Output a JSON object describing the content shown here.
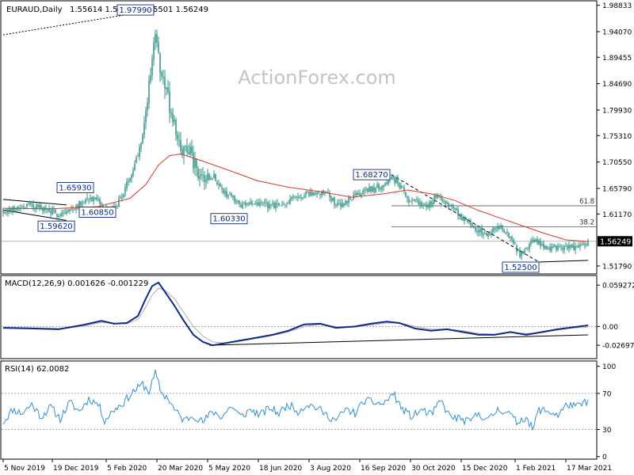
{
  "watermark": "ActionForex.com",
  "colors": {
    "candle": "#1e8a7a",
    "ma": "#d93a2b",
    "macd": "#0e2a8a",
    "signal": "#b0b0b0",
    "rsi": "#2e8fd6",
    "annotation": "#0a2a8a",
    "axis": "#000000",
    "grid_dash": "#888888"
  },
  "chart_data": [
    {
      "type": "candlestick",
      "title": "EURAUD,Daily",
      "ohlc_header": "1.55614 1.56265 1.55501 1.56249",
      "ylim": [
        1.505,
        1.995
      ],
      "y_ticks": [
        "1.98833",
        "1.94070",
        "1.89455",
        "1.84690",
        "1.79930",
        "1.75310",
        "1.70550",
        "1.65790",
        "1.61170",
        "1.56249",
        "1.51790"
      ],
      "y_tick_values": [
        1.98833,
        1.9407,
        1.89455,
        1.8469,
        1.7993,
        1.7531,
        1.7055,
        1.6579,
        1.6117,
        1.56249,
        1.5179
      ],
      "current_price_label": "1.56249",
      "current_price": 1.56249,
      "x_ticks": [
        "5 Nov 2019",
        "19 Dec 2019",
        "5 Feb 2020",
        "20 Mar 2020",
        "5 May 2020",
        "18 Jun 2020",
        "3 Aug 2020",
        "16 Sep 2020",
        "30 Oct 2020",
        "15 Dec 2020",
        "1 Feb 2021",
        "17 Mar 2021"
      ],
      "x_tick_index": [
        0,
        31,
        65,
        97,
        129,
        161,
        193,
        225,
        257,
        289,
        323,
        355
      ],
      "bars_count": 370,
      "close_path": [
        [
          0,
          1.617
        ],
        [
          8,
          1.622
        ],
        [
          15,
          1.628
        ],
        [
          22,
          1.625
        ],
        [
          28,
          1.618
        ],
        [
          33,
          1.612
        ],
        [
          40,
          1.615
        ],
        [
          47,
          1.628
        ],
        [
          54,
          1.642
        ],
        [
          60,
          1.632
        ],
        [
          65,
          1.616
        ],
        [
          70,
          1.622
        ],
        [
          76,
          1.65
        ],
        [
          80,
          1.68
        ],
        [
          85,
          1.72
        ],
        [
          89,
          1.77
        ],
        [
          93,
          1.86
        ],
        [
          96,
          1.95
        ],
        [
          98,
          1.9
        ],
        [
          100,
          1.86
        ],
        [
          104,
          1.82
        ],
        [
          108,
          1.77
        ],
        [
          112,
          1.735
        ],
        [
          116,
          1.72
        ],
        [
          120,
          1.71
        ],
        [
          124,
          1.685
        ],
        [
          128,
          1.675
        ],
        [
          133,
          1.68
        ],
        [
          138,
          1.655
        ],
        [
          144,
          1.642
        ],
        [
          150,
          1.628
        ],
        [
          156,
          1.632
        ],
        [
          162,
          1.63
        ],
        [
          168,
          1.625
        ],
        [
          174,
          1.63
        ],
        [
          180,
          1.635
        ],
        [
          186,
          1.642
        ],
        [
          192,
          1.648
        ],
        [
          198,
          1.65
        ],
        [
          204,
          1.648
        ],
        [
          210,
          1.628
        ],
        [
          216,
          1.632
        ],
        [
          222,
          1.645
        ],
        [
          228,
          1.655
        ],
        [
          233,
          1.657
        ],
        [
          238,
          1.66
        ],
        [
          242,
          1.672
        ],
        [
          246,
          1.675
        ],
        [
          250,
          1.665
        ],
        [
          256,
          1.638
        ],
        [
          262,
          1.63
        ],
        [
          268,
          1.625
        ],
        [
          274,
          1.645
        ],
        [
          280,
          1.63
        ],
        [
          286,
          1.617
        ],
        [
          292,
          1.598
        ],
        [
          298,
          1.585
        ],
        [
          304,
          1.575
        ],
        [
          310,
          1.585
        ],
        [
          314,
          1.59
        ],
        [
          318,
          1.575
        ],
        [
          322,
          1.558
        ],
        [
          326,
          1.538
        ],
        [
          330,
          1.55
        ],
        [
          334,
          1.565
        ],
        [
          338,
          1.56
        ],
        [
          342,
          1.55
        ],
        [
          348,
          1.552
        ],
        [
          354,
          1.55
        ],
        [
          360,
          1.553
        ],
        [
          365,
          1.556
        ],
        [
          369,
          1.562
        ]
      ],
      "series": [
        {
          "name": "",
          "kind": "moving-average",
          "points": [
            [
              0,
              1.622
            ],
            [
              30,
              1.621
            ],
            [
              60,
              1.625
            ],
            [
              80,
              1.64
            ],
            [
              90,
              1.665
            ],
            [
              98,
              1.7
            ],
            [
              105,
              1.717
            ],
            [
              112,
              1.72
            ],
            [
              125,
              1.708
            ],
            [
              140,
              1.693
            ],
            [
              160,
              1.672
            ],
            [
              180,
              1.66
            ],
            [
              200,
              1.652
            ],
            [
              220,
              1.642
            ],
            [
              240,
              1.648
            ],
            [
              255,
              1.655
            ],
            [
              270,
              1.648
            ],
            [
              285,
              1.636
            ],
            [
              300,
              1.618
            ],
            [
              320,
              1.598
            ],
            [
              340,
              1.578
            ],
            [
              355,
              1.565
            ],
            [
              369,
              1.562
            ]
          ]
        }
      ],
      "annotations": [
        {
          "label": "1.97990",
          "bar": 96,
          "price": 1.9799,
          "anchor": "left"
        },
        {
          "label": "1.65930",
          "bar": 58,
          "price": 1.6593,
          "anchor": "left"
        },
        {
          "label": "1.59620",
          "bar": 40,
          "price": 1.5962,
          "anchor": "left"
        },
        {
          "label": "1.60850",
          "bar": 47,
          "price": 1.6085,
          "anchor": "right"
        },
        {
          "label": "1.60330",
          "bar": 155,
          "price": 1.6033,
          "anchor": "left"
        },
        {
          "label": "1.68270",
          "bar": 245,
          "price": 1.6827,
          "anchor": "left"
        },
        {
          "label": "1.52500",
          "bar": 338,
          "price": 1.525,
          "anchor": "left"
        }
      ],
      "fib_levels": [
        {
          "label": "61.8",
          "price": 1.6265,
          "from_bar": 245,
          "to_bar": 369
        },
        {
          "label": "38.2",
          "price": 1.5887,
          "from_bar": 245,
          "to_bar": 369
        }
      ],
      "trendlines": [
        {
          "from": [
            0,
            1.935
          ],
          "to": [
            96,
            1.9799
          ],
          "style": "dotted"
        },
        {
          "from": [
            0,
            1.638
          ],
          "to": [
            40,
            1.628
          ],
          "style": "solid"
        },
        {
          "from": [
            0,
            1.619
          ],
          "to": [
            40,
            1.6
          ],
          "style": "solid"
        },
        {
          "from": [
            245,
            1.6827
          ],
          "to": [
            338,
            1.525
          ],
          "style": "dashed"
        },
        {
          "from": [
            338,
            1.525
          ],
          "to": [
            369,
            1.528
          ],
          "style": "solid"
        }
      ]
    },
    {
      "type": "line",
      "title": "MACD(12,26,9) 0.001626 -0.001229",
      "ylim": [
        -0.045,
        0.072
      ],
      "y_ticks": [
        "0.059272",
        "0.00",
        "-0.026978"
      ],
      "y_tick_values": [
        0.059272,
        0.0,
        -0.026978
      ],
      "series": [
        {
          "name": "",
          "points": [
            [
              0,
              -0.002
            ],
            [
              20,
              -0.003
            ],
            [
              35,
              -0.004
            ],
            [
              50,
              0.002
            ],
            [
              62,
              0.008
            ],
            [
              70,
              0.004
            ],
            [
              78,
              0.005
            ],
            [
              85,
              0.015
            ],
            [
              90,
              0.04
            ],
            [
              94,
              0.058
            ],
            [
              98,
              0.063
            ],
            [
              102,
              0.05
            ],
            [
              108,
              0.03
            ],
            [
              114,
              0.008
            ],
            [
              120,
              -0.012
            ],
            [
              126,
              -0.022
            ],
            [
              132,
              -0.027
            ],
            [
              140,
              -0.024
            ],
            [
              150,
              -0.02
            ],
            [
              160,
              -0.016
            ],
            [
              170,
              -0.012
            ],
            [
              180,
              -0.006
            ],
            [
              190,
              0.003
            ],
            [
              200,
              0.004
            ],
            [
              210,
              -0.002
            ],
            [
              222,
              0.0
            ],
            [
              232,
              0.004
            ],
            [
              242,
              0.007
            ],
            [
              250,
              0.005
            ],
            [
              260,
              -0.003
            ],
            [
              270,
              -0.006
            ],
            [
              280,
              -0.004
            ],
            [
              290,
              -0.008
            ],
            [
              300,
              -0.012
            ],
            [
              310,
              -0.012
            ],
            [
              320,
              -0.008
            ],
            [
              330,
              -0.012
            ],
            [
              340,
              -0.008
            ],
            [
              350,
              -0.004
            ],
            [
              360,
              -0.001
            ],
            [
              369,
              0.0016
            ]
          ]
        },
        {
          "name": "",
          "points": [
            [
              0,
              -0.001
            ],
            [
              20,
              -0.002
            ],
            [
              35,
              -0.003
            ],
            [
              50,
              0.0
            ],
            [
              62,
              0.006
            ],
            [
              70,
              0.004
            ],
            [
              78,
              0.004
            ],
            [
              85,
              0.01
            ],
            [
              90,
              0.028
            ],
            [
              94,
              0.045
            ],
            [
              98,
              0.055
            ],
            [
              102,
              0.052
            ],
            [
              108,
              0.04
            ],
            [
              114,
              0.02
            ],
            [
              120,
              0.0
            ],
            [
              126,
              -0.014
            ],
            [
              132,
              -0.022
            ],
            [
              140,
              -0.024
            ],
            [
              150,
              -0.021
            ],
            [
              160,
              -0.017
            ],
            [
              170,
              -0.013
            ],
            [
              180,
              -0.008
            ],
            [
              190,
              0.0
            ],
            [
              200,
              0.003
            ],
            [
              210,
              0.0
            ],
            [
              222,
              -0.001
            ],
            [
              232,
              0.002
            ],
            [
              242,
              0.005
            ],
            [
              250,
              0.005
            ],
            [
              260,
              0.0
            ],
            [
              270,
              -0.004
            ],
            [
              280,
              -0.004
            ],
            [
              290,
              -0.006
            ],
            [
              300,
              -0.01
            ],
            [
              310,
              -0.011
            ],
            [
              320,
              -0.009
            ],
            [
              330,
              -0.01
            ],
            [
              340,
              -0.009
            ],
            [
              350,
              -0.005
            ],
            [
              360,
              -0.002
            ],
            [
              369,
              -0.0012
            ]
          ]
        }
      ],
      "trendline": {
        "from": [
          130,
          -0.027
        ],
        "to": [
          369,
          -0.012
        ]
      }
    },
    {
      "type": "line",
      "title": "RSI(14) 62.0082",
      "ylim": [
        -2,
        105
      ],
      "y_ticks": [
        "100",
        "70",
        "30",
        "0"
      ],
      "y_tick_values": [
        100,
        70,
        30,
        0
      ],
      "levels": [
        70,
        30
      ],
      "series": [
        {
          "name": "",
          "points": [
            [
              0,
              38
            ],
            [
              6,
              52
            ],
            [
              12,
              48
            ],
            [
              18,
              58
            ],
            [
              24,
              44
            ],
            [
              30,
              55
            ],
            [
              36,
              42
            ],
            [
              42,
              60
            ],
            [
              48,
              50
            ],
            [
              54,
              64
            ],
            [
              60,
              58
            ],
            [
              64,
              40
            ],
            [
              70,
              52
            ],
            [
              76,
              60
            ],
            [
              82,
              72
            ],
            [
              88,
              80
            ],
            [
              92,
              72
            ],
            [
              96,
              92
            ],
            [
              100,
              70
            ],
            [
              104,
              65
            ],
            [
              108,
              52
            ],
            [
              114,
              40
            ],
            [
              120,
              46
            ],
            [
              126,
              38
            ],
            [
              132,
              50
            ],
            [
              138,
              44
            ],
            [
              144,
              56
            ],
            [
              150,
              44
            ],
            [
              156,
              52
            ],
            [
              162,
              46
            ],
            [
              168,
              54
            ],
            [
              174,
              48
            ],
            [
              180,
              58
            ],
            [
              186,
              50
            ],
            [
              192,
              58
            ],
            [
              198,
              54
            ],
            [
              204,
              46
            ],
            [
              210,
              40
            ],
            [
              216,
              52
            ],
            [
              222,
              48
            ],
            [
              228,
              62
            ],
            [
              234,
              60
            ],
            [
              240,
              58
            ],
            [
              246,
              70
            ],
            [
              252,
              52
            ],
            [
              258,
              44
            ],
            [
              264,
              52
            ],
            [
              270,
              46
            ],
            [
              276,
              62
            ],
            [
              282,
              44
            ],
            [
              288,
              42
            ],
            [
              294,
              38
            ],
            [
              300,
              48
            ],
            [
              306,
              40
            ],
            [
              312,
              52
            ],
            [
              318,
              50
            ],
            [
              324,
              38
            ],
            [
              330,
              44
            ],
            [
              334,
              30
            ],
            [
              338,
              52
            ],
            [
              344,
              50
            ],
            [
              350,
              46
            ],
            [
              356,
              58
            ],
            [
              362,
              55
            ],
            [
              369,
              62
            ]
          ]
        }
      ]
    }
  ]
}
